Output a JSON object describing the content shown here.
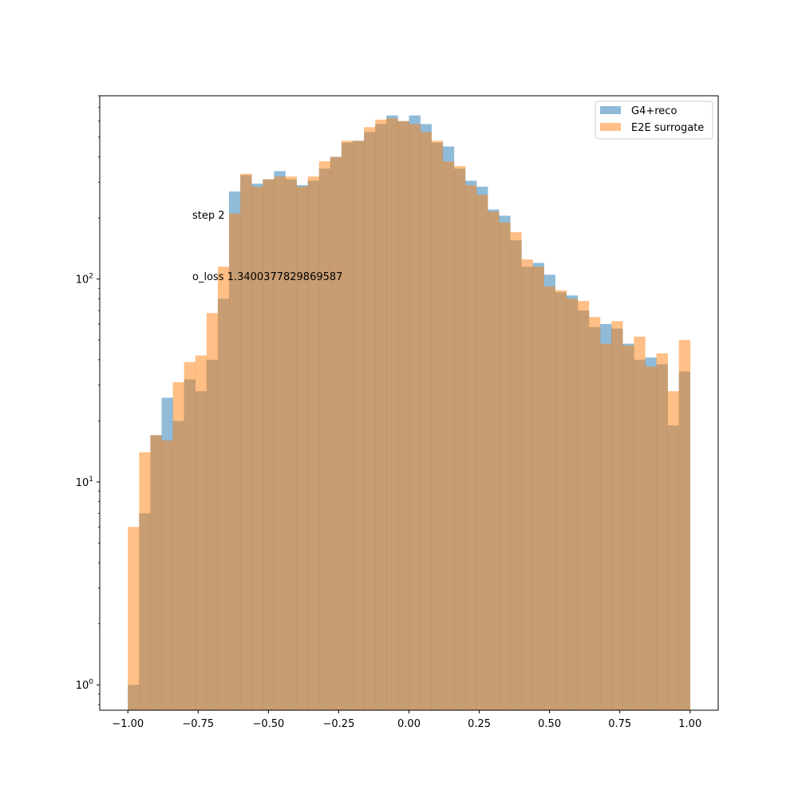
{
  "chart_data": {
    "type": "bar",
    "title": "",
    "xlabel": "",
    "ylabel": "",
    "xlim": [
      -1.1,
      1.1
    ],
    "ylim": [
      0.75,
      800
    ],
    "yscale": "log",
    "grid": false,
    "legend_position": "top-right",
    "bin_edges": [
      -1.0,
      -0.96,
      -0.92,
      -0.88,
      -0.84,
      -0.8,
      -0.76,
      -0.72,
      -0.68,
      -0.64,
      -0.6,
      -0.56,
      -0.52,
      -0.48,
      -0.44,
      -0.4,
      -0.36,
      -0.32,
      -0.28,
      -0.24,
      -0.2,
      -0.16,
      -0.12,
      -0.08,
      -0.04,
      0.0,
      0.04,
      0.08,
      0.12,
      0.16,
      0.2,
      0.24,
      0.28,
      0.32,
      0.36,
      0.4,
      0.44,
      0.48,
      0.52,
      0.56,
      0.6,
      0.64,
      0.68,
      0.72,
      0.76,
      0.8,
      0.84,
      0.88,
      0.92,
      0.96,
      1.0
    ],
    "series": [
      {
        "name": "G4+reco",
        "color": "#1f77b4",
        "opacity": 0.5,
        "values": [
          1,
          7,
          17,
          26,
          20,
          32,
          28,
          40,
          80,
          270,
          325,
          295,
          310,
          340,
          310,
          290,
          305,
          350,
          400,
          470,
          480,
          530,
          580,
          640,
          600,
          640,
          580,
          470,
          450,
          350,
          305,
          285,
          220,
          205,
          155,
          115,
          120,
          105,
          86,
          83,
          70,
          58,
          60,
          57,
          48,
          40,
          41,
          38,
          19,
          35
        ]
      },
      {
        "name": "E2E surrogate",
        "color": "#ff7f0e",
        "opacity": 0.5,
        "values": [
          6,
          14,
          17,
          16,
          31,
          39,
          42,
          68,
          115,
          210,
          330,
          285,
          310,
          320,
          320,
          285,
          320,
          380,
          400,
          480,
          480,
          560,
          610,
          620,
          600,
          580,
          530,
          480,
          380,
          360,
          290,
          260,
          215,
          190,
          170,
          125,
          115,
          92,
          88,
          80,
          78,
          65,
          48,
          62,
          47,
          52,
          37,
          43,
          28,
          50
        ]
      }
    ],
    "x_ticks": [
      -1.0,
      -0.75,
      -0.5,
      -0.25,
      0.0,
      0.25,
      0.5,
      0.75,
      1.0
    ],
    "x_tick_labels": [
      "−1.00",
      "−0.75",
      "−0.50",
      "−0.25",
      "0.00",
      "0.25",
      "0.50",
      "0.75",
      "1.00"
    ],
    "y_ticks": [
      1,
      10,
      100
    ],
    "y_tick_labels": [
      {
        "base": "10",
        "exp": "0"
      },
      {
        "base": "10",
        "exp": "1"
      },
      {
        "base": "10",
        "exp": "2"
      }
    ],
    "annotations": [
      "step 2",
      "o_loss 1.3400377829869587"
    ]
  }
}
